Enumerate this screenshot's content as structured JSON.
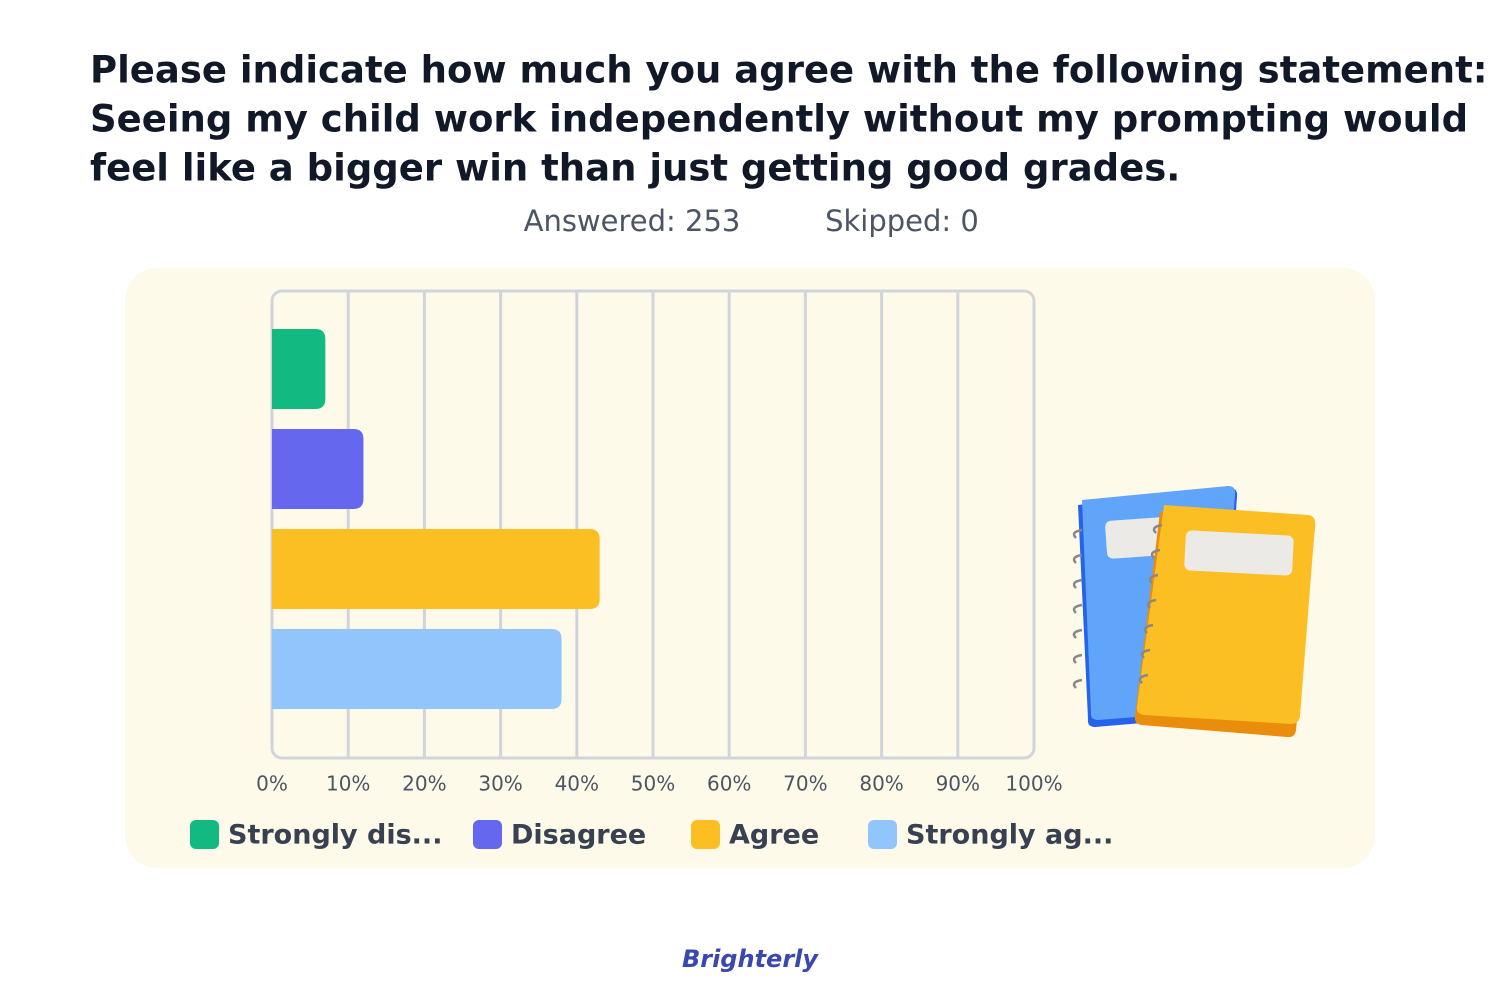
{
  "chart_data": {
    "type": "bar",
    "orientation": "horizontal",
    "title": [
      "Please indicate how much you agree with the following statement:",
      "Seeing my child work independently without my prompting would",
      "feel like a bigger win than just getting good grades."
    ],
    "stats": [
      "Answered: 253",
      "Skipped: 0"
    ],
    "series": [
      {
        "name": "Strongly dis...",
        "color": "#12b981",
        "values": [
          7
        ]
      },
      {
        "name": "Disagree",
        "color": "#6567ef",
        "values": [
          12
        ]
      },
      {
        "name": "Agree",
        "color": "#fbbf24",
        "values": [
          43
        ]
      },
      {
        "name": "Strongly ag...",
        "color": "#93c5fd",
        "values": [
          38
        ]
      }
    ],
    "xlim": [
      0,
      100
    ],
    "xticks": [
      {
        "value": 0,
        "label": "0%"
      },
      {
        "value": 10,
        "label": "10%"
      },
      {
        "value": 20,
        "label": "20%"
      },
      {
        "value": 30,
        "label": "30%"
      },
      {
        "value": 40,
        "label": "40%"
      },
      {
        "value": 50,
        "label": "50%"
      },
      {
        "value": 60,
        "label": "60%"
      },
      {
        "value": 70,
        "label": "70%"
      },
      {
        "value": 80,
        "label": "80%"
      },
      {
        "value": 90,
        "label": "90%"
      },
      {
        "value": 100,
        "label": "100%"
      }
    ],
    "grid": true,
    "brand": "Brighterly"
  }
}
